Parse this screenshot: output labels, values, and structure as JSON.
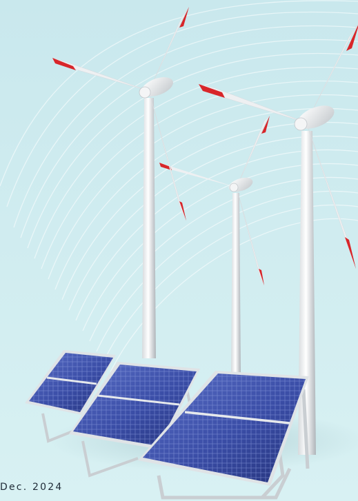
{
  "caption": {
    "date": "Dec. 2024"
  },
  "colors": {
    "background": "#cdebef",
    "turbine_white": "#f1f3f4",
    "blade_tip_red": "#d8262a",
    "solar_panel_blue": "#3b4fa8"
  },
  "scene": {
    "wind_turbine_count": 3,
    "solar_panel_count": 3
  }
}
